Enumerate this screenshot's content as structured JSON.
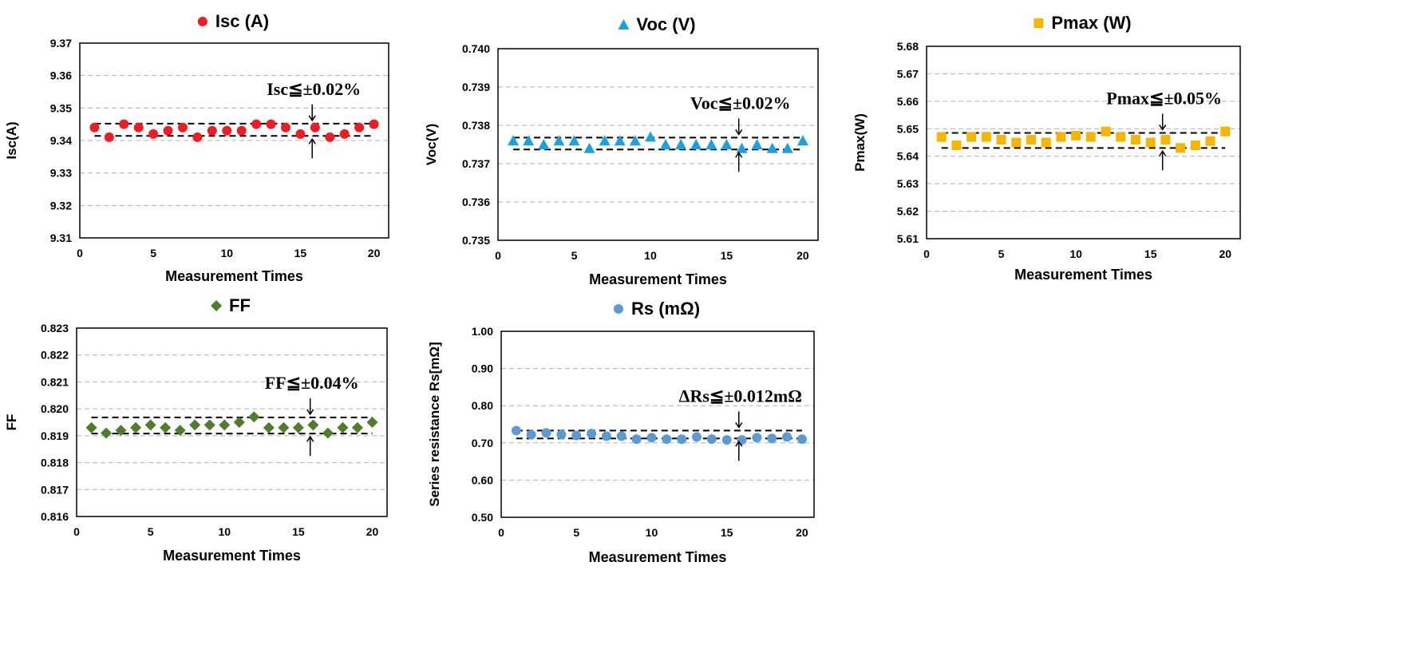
{
  "chart_data": [
    {
      "id": "isc",
      "type": "scatter",
      "title": "Isc (A)",
      "xlabel": "Measurement Times",
      "ylabel": "Isc(A)",
      "xlim": [
        0,
        21
      ],
      "ylim": [
        9.31,
        9.37
      ],
      "xticks": [
        "0",
        "5",
        "10",
        "15",
        "20"
      ],
      "yticks": [
        "9.31",
        "9.32",
        "9.33",
        "9.34",
        "9.35",
        "9.36",
        "9.37"
      ],
      "marker": "circle",
      "color": "#ee1c25",
      "grid": true,
      "x": [
        1,
        2,
        3,
        4,
        5,
        6,
        7,
        8,
        9,
        10,
        11,
        12,
        13,
        14,
        15,
        16,
        17,
        18,
        19,
        20
      ],
      "values": [
        9.344,
        9.341,
        9.345,
        9.344,
        9.342,
        9.343,
        9.344,
        9.341,
        9.343,
        9.343,
        9.343,
        9.345,
        9.345,
        9.344,
        9.342,
        9.344,
        9.341,
        9.342,
        9.344,
        9.345
      ],
      "bounds": [
        9.3452,
        9.3414
      ],
      "annotation": "Isc≦±0.02%",
      "annotation_x": 15.8
    },
    {
      "id": "voc",
      "type": "scatter",
      "title": "Voc (V)",
      "xlabel": "Measurement Times",
      "ylabel": "Voc(V)",
      "xlim": [
        0,
        21
      ],
      "ylim": [
        0.735,
        0.74
      ],
      "xticks": [
        "0",
        "5",
        "10",
        "15",
        "20"
      ],
      "yticks": [
        "0.735",
        "0.736",
        "0.737",
        "0.738",
        "0.739",
        "0.740"
      ],
      "marker": "triangle",
      "color": "#1ba1e2",
      "grid": true,
      "x": [
        1,
        2,
        3,
        4,
        5,
        6,
        7,
        8,
        9,
        10,
        11,
        12,
        13,
        14,
        15,
        16,
        17,
        18,
        19,
        20
      ],
      "values": [
        0.7376,
        0.7376,
        0.7375,
        0.7376,
        0.7376,
        0.7374,
        0.7376,
        0.7376,
        0.7376,
        0.7377,
        0.7375,
        0.7375,
        0.7375,
        0.7375,
        0.7375,
        0.7374,
        0.7375,
        0.7374,
        0.7374,
        0.7376
      ],
      "bounds": [
        0.73768,
        0.73737
      ],
      "annotation": "Voc≦±0.02%",
      "annotation_x": 15.8
    },
    {
      "id": "pmax",
      "type": "scatter",
      "title": "Pmax (W)",
      "xlabel": "Measurement Times",
      "ylabel": "Pmax(W)",
      "xlim": [
        0,
        21
      ],
      "ylim": [
        5.61,
        5.68
      ],
      "xticks": [
        "0",
        "5",
        "10",
        "15",
        "20"
      ],
      "yticks": [
        "5.61",
        "5.62",
        "5.63",
        "5.64",
        "5.65",
        "5.66",
        "5.67",
        "5.68"
      ],
      "marker": "square",
      "color": "#f7b500",
      "grid": true,
      "x": [
        1,
        2,
        3,
        4,
        5,
        6,
        7,
        8,
        9,
        10,
        11,
        12,
        13,
        14,
        15,
        16,
        17,
        18,
        19,
        20
      ],
      "values": [
        5.647,
        5.644,
        5.647,
        5.647,
        5.646,
        5.645,
        5.646,
        5.645,
        5.647,
        5.6475,
        5.647,
        5.649,
        5.647,
        5.646,
        5.645,
        5.646,
        5.643,
        5.644,
        5.6455,
        5.649
      ],
      "bounds": [
        5.6485,
        5.643
      ],
      "annotation": "Pmax≦±0.05%",
      "annotation_x": 15.8
    },
    {
      "id": "ff",
      "type": "scatter",
      "title": "FF",
      "xlabel": "Measurement Times",
      "ylabel": "FF",
      "xlim": [
        0,
        21
      ],
      "ylim": [
        0.816,
        0.823
      ],
      "xticks": [
        "0",
        "5",
        "10",
        "15",
        "20"
      ],
      "yticks": [
        "0.816",
        "0.817",
        "0.818",
        "0.819",
        "0.820",
        "0.821",
        "0.822",
        "0.823"
      ],
      "marker": "diamond",
      "color": "#4f7d2b",
      "grid": true,
      "x": [
        1,
        2,
        3,
        4,
        5,
        6,
        7,
        8,
        9,
        10,
        11,
        12,
        13,
        14,
        15,
        16,
        17,
        18,
        19,
        20
      ],
      "values": [
        0.8193,
        0.8191,
        0.8192,
        0.8193,
        0.8194,
        0.8193,
        0.8192,
        0.8194,
        0.8194,
        0.8194,
        0.8195,
        0.8197,
        0.8193,
        0.8193,
        0.8193,
        0.8194,
        0.8191,
        0.8193,
        0.8193,
        0.8195
      ],
      "bounds": [
        0.81968,
        0.81908
      ],
      "annotation": "FF≦±0.04%",
      "annotation_x": 15.8
    },
    {
      "id": "rs",
      "type": "scatter",
      "title": "Rs (mΩ)",
      "xlabel": "Measurement Times",
      "ylabel": "Series resistance Rs[mΩ]",
      "xlim": [
        0,
        20.8
      ],
      "ylim": [
        0.5,
        1.0
      ],
      "xticks": [
        "0",
        "5",
        "10",
        "15",
        "20"
      ],
      "yticks": [
        "0.50",
        "0.60",
        "0.70",
        "0.80",
        "0.90",
        "1.00"
      ],
      "marker": "circle",
      "color": "#5b9bd5",
      "grid": true,
      "x": [
        1,
        2,
        3,
        4,
        5,
        6,
        7,
        8,
        9,
        10,
        11,
        12,
        13,
        14,
        15,
        16,
        17,
        18,
        19,
        20
      ],
      "values": [
        0.733,
        0.722,
        0.727,
        0.722,
        0.72,
        0.725,
        0.718,
        0.718,
        0.71,
        0.714,
        0.71,
        0.71,
        0.716,
        0.71,
        0.708,
        0.708,
        0.714,
        0.712,
        0.716,
        0.71
      ],
      "bounds": [
        0.733,
        0.712
      ],
      "annotation": "ΔRs≦±0.012mΩ",
      "annotation_x": 15.8
    }
  ]
}
